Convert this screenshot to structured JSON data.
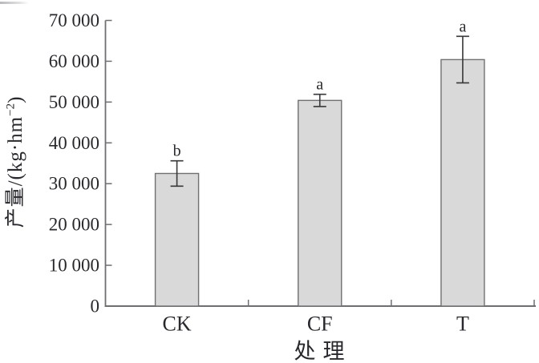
{
  "figure": {
    "background": "#ffffff"
  },
  "chart_data": {
    "type": "bar",
    "title": "",
    "xlabel": "处理",
    "ylabel": "产量/(kg·hm⁻²)",
    "ylabel_parts": {
      "prefix": "产量/(kg·hm",
      "superscript": "−2",
      "suffix": ")"
    },
    "categories": [
      "CK",
      "CF",
      "T"
    ],
    "values": [
      32500,
      50400,
      60400
    ],
    "errors": [
      3100,
      1500,
      5700
    ],
    "sig_letters": [
      "b",
      "a",
      "a"
    ],
    "ylim": [
      0,
      70000
    ],
    "ytick_values": [
      0,
      10000,
      20000,
      30000,
      40000,
      50000,
      60000,
      70000
    ],
    "ytick_labels": [
      "0",
      "10 000",
      "20 000",
      "30 000",
      "40 000",
      "50 000",
      "60 000",
      "70 000"
    ],
    "grid": false,
    "legend": null,
    "colors": {
      "bar_fill": "#d9d9d9",
      "bar_edge": "#707074",
      "axis": "#6f6f73",
      "error_bar": "#38383c",
      "text": "#28282e"
    }
  }
}
